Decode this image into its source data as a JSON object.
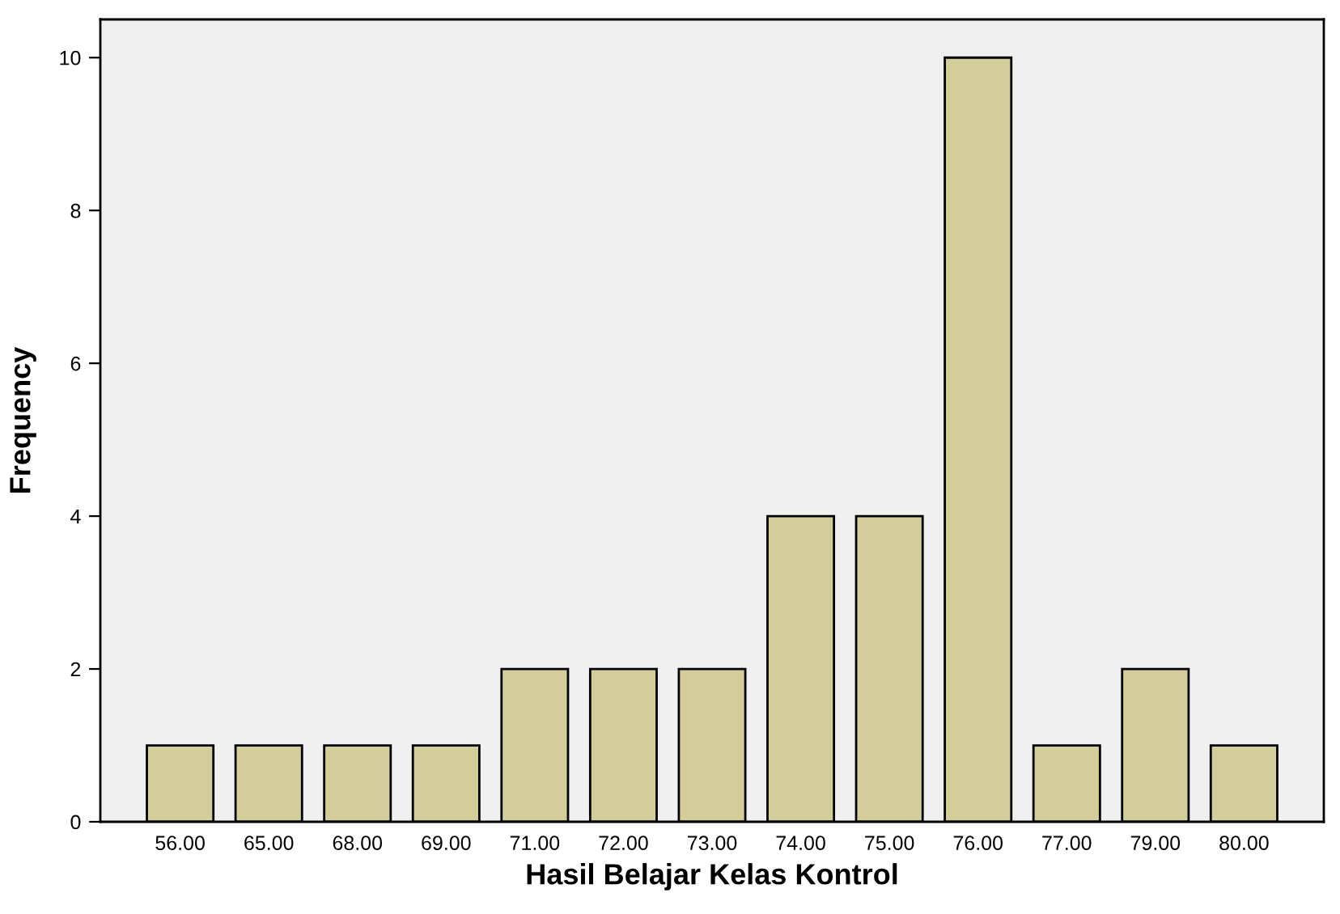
{
  "chart_data": {
    "type": "bar",
    "xlabel": "Hasil Belajar Kelas Kontrol",
    "ylabel": "Frequency",
    "categories": [
      "56.00",
      "65.00",
      "68.00",
      "69.00",
      "71.00",
      "72.00",
      "73.00",
      "74.00",
      "75.00",
      "76.00",
      "77.00",
      "79.00",
      "80.00"
    ],
    "values": [
      1,
      1,
      1,
      1,
      2,
      2,
      2,
      4,
      4,
      10,
      1,
      2,
      1
    ],
    "color": "#d3ce99",
    "ylim": [
      0,
      10.5
    ],
    "yticks": [
      0,
      2,
      4,
      6,
      8,
      10
    ],
    "grid": false
  }
}
